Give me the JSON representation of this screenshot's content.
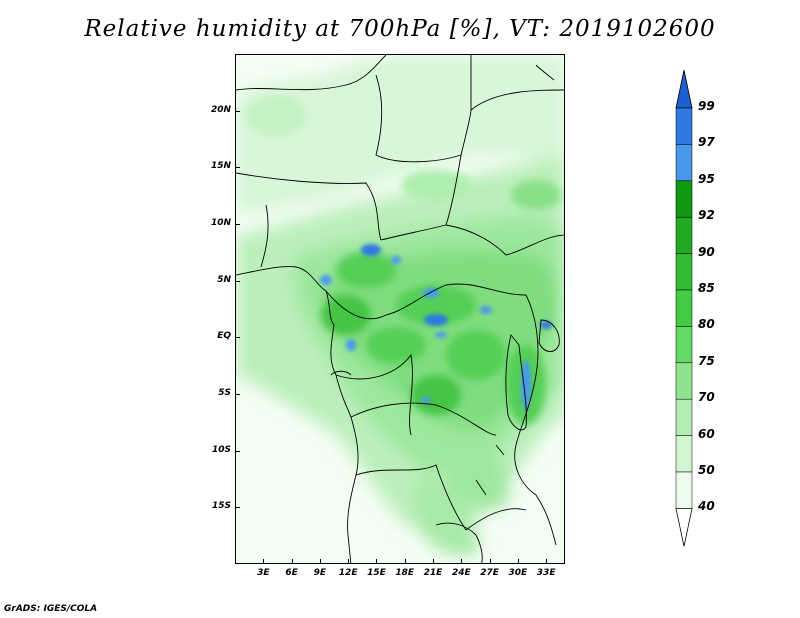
{
  "title": "Relative humidity at 700hPa [%], VT: 2019102600",
  "footer": "GrADS: IGES/COLA",
  "map": {
    "lon_range": [
      0,
      35
    ],
    "lat_range": [
      -20,
      25
    ],
    "x_ticks": [
      "3E",
      "6E",
      "9E",
      "12E",
      "15E",
      "18E",
      "21E",
      "24E",
      "27E",
      "30E",
      "33E"
    ],
    "x_tick_values": [
      3,
      6,
      9,
      12,
      15,
      18,
      21,
      24,
      27,
      30,
      33
    ],
    "y_ticks": [
      "20N",
      "15N",
      "10N",
      "5N",
      "EQ",
      "5S",
      "10S",
      "15S"
    ],
    "y_tick_values": [
      20,
      15,
      10,
      5,
      0,
      -5,
      -10,
      -15
    ]
  },
  "colorbar": {
    "labels": [
      "99",
      "97",
      "95",
      "92",
      "90",
      "85",
      "80",
      "75",
      "70",
      "60",
      "50",
      "40"
    ],
    "colors": [
      "#1f5fd0",
      "#2e78e0",
      "#4a98ee",
      "#119911",
      "#22aa22",
      "#33bb33",
      "#44cc44",
      "#66d866",
      "#8ee48e",
      "#b2eeb2",
      "#d2f6d2",
      "#ecfcec"
    ],
    "below_color": "#ffffff"
  }
}
